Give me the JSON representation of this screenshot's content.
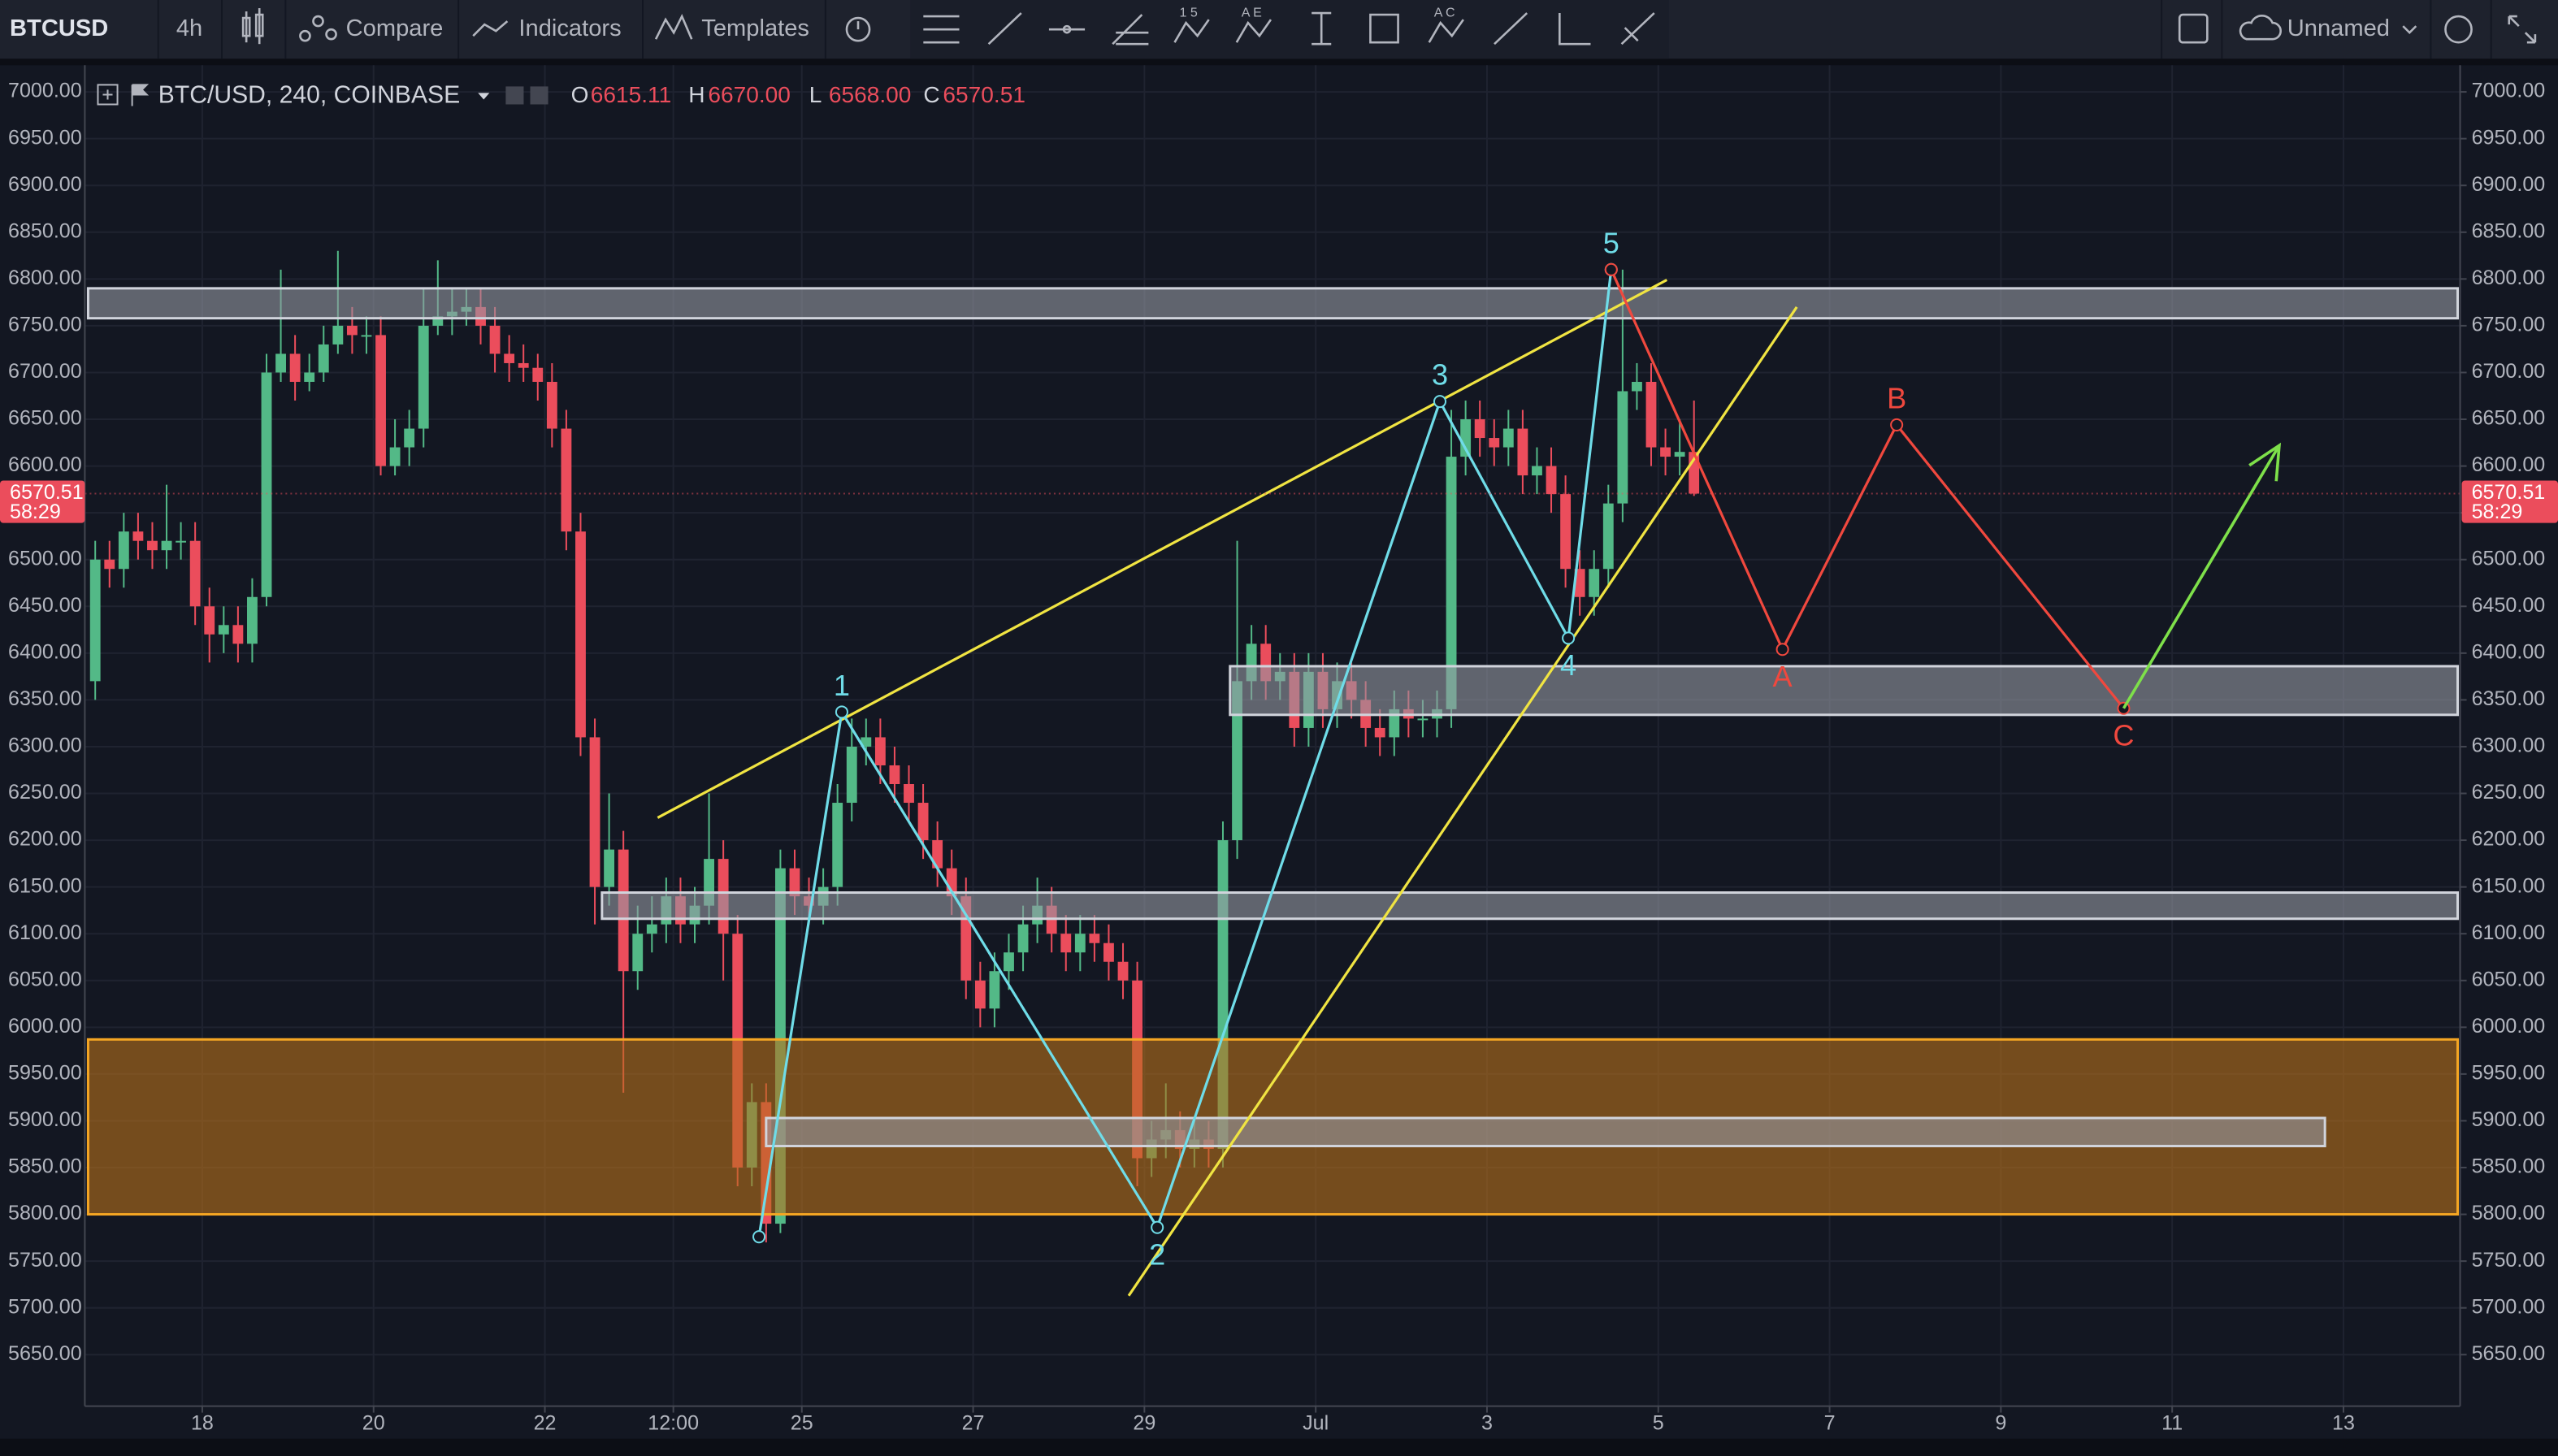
{
  "toolbar": {
    "symbol": "BTCUSD",
    "interval": "4h",
    "compare": "Compare",
    "indicators": "Indicators",
    "templates": "Templates",
    "icon_texts": [
      "1 5",
      "A E",
      "A C"
    ],
    "layout": "Unnamed"
  },
  "chart_data": {
    "type": "candlestick",
    "title": "BTC/USD, 240, COINBASE",
    "legend": [
      {
        "key": "O",
        "text": "6615.11"
      },
      {
        "key": "H",
        "text": "6670.00"
      },
      {
        "key": "L",
        "text": "6568.00"
      },
      {
        "key": "C",
        "text": "6570.51"
      }
    ],
    "countdown": "58:29",
    "up_color": "#53b987",
    "down_color": "#eb4d5c",
    "grid": true,
    "xlim": [
      0,
      166
    ],
    "ylim": [
      5595,
      7025
    ],
    "xticks": [
      {
        "value": 8,
        "label": "18"
      },
      {
        "value": 20,
        "label": "20"
      },
      {
        "value": 32,
        "label": "22"
      },
      {
        "value": 41,
        "label": "12:00"
      },
      {
        "value": 50,
        "label": "25"
      },
      {
        "value": 62,
        "label": "27"
      },
      {
        "value": 74,
        "label": "29"
      },
      {
        "value": 86,
        "label": "Jul"
      },
      {
        "value": 98,
        "label": "3"
      },
      {
        "value": 110,
        "label": "5"
      },
      {
        "value": 122,
        "label": "7"
      },
      {
        "value": 134,
        "label": "9"
      },
      {
        "value": 146,
        "label": "11"
      },
      {
        "value": 158,
        "label": "13"
      }
    ],
    "yticks": [
      {
        "value": 5650,
        "label": "5650.00"
      },
      {
        "value": 5700,
        "label": "5700.00"
      },
      {
        "value": 5750,
        "label": "5750.00"
      },
      {
        "value": 5800,
        "label": "5800.00"
      },
      {
        "value": 5850,
        "label": "5850.00"
      },
      {
        "value": 5900,
        "label": "5900.00"
      },
      {
        "value": 5950,
        "label": "5950.00"
      },
      {
        "value": 6000,
        "label": "6000.00"
      },
      {
        "value": 6050,
        "label": "6050.00"
      },
      {
        "value": 6100,
        "label": "6100.00"
      },
      {
        "value": 6150,
        "label": "6150.00"
      },
      {
        "value": 6200,
        "label": "6200.00"
      },
      {
        "value": 6250,
        "label": "6250.00"
      },
      {
        "value": 6300,
        "label": "6300.00"
      },
      {
        "value": 6350,
        "label": "6350.00"
      },
      {
        "value": 6400,
        "label": "6400.00"
      },
      {
        "value": 6450,
        "label": "6450.00"
      },
      {
        "value": 6500,
        "label": "6500.00"
      },
      {
        "value": 6550,
        "label": "6550.00"
      },
      {
        "value": 6600,
        "label": "6600.00"
      },
      {
        "value": 6650,
        "label": "6650.00"
      },
      {
        "value": 6700,
        "label": "6700.00"
      },
      {
        "value": 6750,
        "label": "6750.00"
      },
      {
        "value": 6800,
        "label": "6800.00"
      },
      {
        "value": 6850,
        "label": "6850.00"
      },
      {
        "value": 6900,
        "label": "6900.00"
      },
      {
        "value": 6950,
        "label": "6950.00"
      },
      {
        "value": 7000,
        "label": "7000.00"
      }
    ],
    "open": [
      6370,
      6500,
      6490,
      6530,
      6520,
      6510,
      6520,
      6520,
      6450,
      6420,
      6430,
      6410,
      6460,
      6700,
      6720,
      6690,
      6700,
      6730,
      6750,
      6740,
      6740,
      6600,
      6620,
      6640,
      6750,
      6760,
      6765,
      6770,
      6750,
      6720,
      6710,
      6705,
      6690,
      6640,
      6530,
      6310,
      6150,
      6190,
      6060,
      6100,
      6110,
      6140,
      6110,
      6130,
      6180,
      6100,
      5850,
      5920,
      5790,
      6170,
      6140,
      6130,
      6150,
      6240,
      6300,
      6310,
      6280,
      6260,
      6240,
      6200,
      6170,
      6140,
      6050,
      6020,
      6060,
      6080,
      6110,
      6130,
      6100,
      6080,
      6100,
      6090,
      6070,
      6050,
      5860,
      5880,
      5890,
      5870,
      5880,
      5870,
      6200,
      6370,
      6410,
      6370,
      6380,
      6320,
      6380,
      6340,
      6370,
      6350,
      6320,
      6310,
      6340,
      6330,
      6330,
      6340,
      6610,
      6650,
      6630,
      6620,
      6640,
      6590,
      6600,
      6570,
      6490,
      6460,
      6490,
      6560,
      6680,
      6690,
      6620,
      6610,
      6615.11
    ],
    "high": [
      6520,
      6520,
      6550,
      6550,
      6540,
      6580,
      6540,
      6540,
      6470,
      6450,
      6450,
      6480,
      6720,
      6810,
      6740,
      6720,
      6750,
      6830,
      6770,
      6760,
      6760,
      6650,
      6660,
      6790,
      6820,
      6790,
      6790,
      6790,
      6770,
      6740,
      6730,
      6720,
      6710,
      6660,
      6550,
      6330,
      6250,
      6210,
      6130,
      6140,
      6160,
      6160,
      6150,
      6250,
      6200,
      6120,
      5940,
      5940,
      6190,
      6190,
      6160,
      6170,
      6260,
      6330,
      6330,
      6330,
      6300,
      6280,
      6260,
      6220,
      6190,
      6160,
      6070,
      6080,
      6100,
      6130,
      6160,
      6150,
      6120,
      6120,
      6120,
      6110,
      6090,
      6070,
      5900,
      5940,
      5910,
      5900,
      5900,
      6220,
      6520,
      6430,
      6430,
      6400,
      6400,
      6400,
      6400,
      6390,
      6390,
      6370,
      6340,
      6360,
      6360,
      6350,
      6360,
      6660,
      6670,
      6670,
      6650,
      6660,
      6660,
      6620,
      6620,
      6590,
      6510,
      6510,
      6580,
      6810,
      6710,
      6710,
      6640,
      6650,
      6670
    ],
    "low": [
      6350,
      6470,
      6470,
      6500,
      6490,
      6490,
      6500,
      6430,
      6390,
      6400,
      6390,
      6390,
      6450,
      6690,
      6670,
      6680,
      6690,
      6720,
      6720,
      6720,
      6590,
      6590,
      6600,
      6620,
      6740,
      6740,
      6750,
      6730,
      6700,
      6690,
      6690,
      6670,
      6620,
      6510,
      6290,
      6110,
      6130,
      5930,
      6040,
      6080,
      6090,
      6090,
      6090,
      6110,
      6050,
      5830,
      5830,
      5770,
      5780,
      6120,
      6110,
      6110,
      6130,
      6220,
      6280,
      6260,
      6240,
      6220,
      6180,
      6150,
      6120,
      6030,
      6000,
      6000,
      6040,
      6060,
      6090,
      6080,
      6060,
      6060,
      6070,
      6050,
      6030,
      5830,
      5840,
      5860,
      5850,
      5850,
      5850,
      5850,
      6180,
      6350,
      6350,
      6350,
      6300,
      6300,
      6320,
      6320,
      6330,
      6300,
      6290,
      6290,
      6310,
      6310,
      6310,
      6320,
      6590,
      6610,
      6600,
      6600,
      6570,
      6570,
      6550,
      6470,
      6440,
      6440,
      6470,
      6540,
      6660,
      6600,
      6590,
      6590,
      6568
    ],
    "close": [
      6500,
      6490,
      6530,
      6520,
      6510,
      6520,
      6520,
      6450,
      6420,
      6430,
      6410,
      6460,
      6700,
      6720,
      6690,
      6700,
      6730,
      6750,
      6740,
      6740,
      6600,
      6620,
      6640,
      6750,
      6760,
      6765,
      6770,
      6750,
      6720,
      6710,
      6705,
      6690,
      6640,
      6530,
      6310,
      6150,
      6190,
      6060,
      6100,
      6110,
      6140,
      6110,
      6130,
      6180,
      6100,
      5850,
      5920,
      5790,
      6170,
      6140,
      6130,
      6150,
      6240,
      6300,
      6310,
      6280,
      6260,
      6240,
      6200,
      6170,
      6140,
      6050,
      6020,
      6060,
      6080,
      6110,
      6130,
      6100,
      6080,
      6100,
      6090,
      6070,
      6050,
      5860,
      5880,
      5890,
      5870,
      5880,
      5870,
      6200,
      6370,
      6410,
      6370,
      6380,
      6320,
      6380,
      6340,
      6370,
      6350,
      6320,
      6310,
      6340,
      6330,
      6330,
      6340,
      6610,
      6650,
      6630,
      6620,
      6640,
      6590,
      6600,
      6570,
      6490,
      6460,
      6490,
      6560,
      6680,
      6690,
      6620,
      6610,
      6615.11,
      6570.51
    ],
    "zones": [
      {
        "x": [
          0,
          166
        ],
        "y": [
          6758,
          6790
        ],
        "color": "#9598a1",
        "border": "#d1d4dc"
      },
      {
        "x": [
          80,
          166
        ],
        "y": [
          6334,
          6386
        ],
        "color": "#9598a1",
        "border": "#d1d4dc"
      },
      {
        "x": [
          36,
          166
        ],
        "y": [
          6116,
          6144
        ],
        "color": "#9598a1",
        "border": "#d1d4dc"
      },
      {
        "x": [
          0,
          166
        ],
        "y": [
          5800,
          5987
        ],
        "color": "#b8701a",
        "border": "#f5a623"
      },
      {
        "x": [
          47.5,
          156.7
        ],
        "y": [
          5873,
          5903
        ],
        "color": "#9598a1",
        "border": "#d1d4dc"
      }
    ],
    "trendlines": [
      {
        "x": [
          39.9,
          110.6
        ],
        "y": [
          6224,
          6799
        ],
        "color": "#f0e442"
      },
      {
        "x": [
          72.9,
          119.7
        ],
        "y": [
          5713,
          6770
        ],
        "color": "#f0e442"
      }
    ],
    "waves": [
      {
        "x": [
          47,
          52.8,
          74.9,
          94.7,
          103.7,
          106.7
        ],
        "y": [
          5776,
          6337,
          5786,
          6669,
          6416,
          6810
        ],
        "labels": [
          null,
          "1",
          "2",
          "3",
          "4",
          "5"
        ],
        "color": "#6fdce8"
      },
      {
        "x": [
          106.7,
          118.7,
          126.7,
          142.6
        ],
        "y": [
          6810,
          6404,
          6644,
          6341
        ],
        "labels": [
          null,
          "A",
          "B",
          "C"
        ],
        "color": "#f0483e"
      }
    ],
    "arrow": {
      "x": [
        142.6,
        153.5
      ],
      "y": [
        6341,
        6622
      ],
      "color": "#7ee04a"
    }
  }
}
